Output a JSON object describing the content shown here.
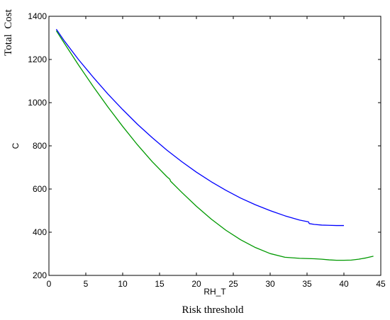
{
  "chart_data": {
    "type": "line",
    "outer_ylabel": "Total  Cost",
    "outer_xlabel": "Risk threshold",
    "xlabel": "RH_T",
    "ylabel": "C",
    "xlim": [
      0,
      45
    ],
    "ylim": [
      200,
      1400
    ],
    "xticks": [
      0,
      5,
      10,
      15,
      20,
      25,
      30,
      35,
      40,
      45
    ],
    "yticks": [
      200,
      400,
      600,
      800,
      1000,
      1200,
      1400
    ],
    "grid": false,
    "legend": "none",
    "series": [
      {
        "color": "#0000ff",
        "x": [
          1,
          2,
          4,
          6,
          8,
          10,
          12,
          14,
          16,
          18,
          20,
          22,
          24,
          26,
          28,
          30,
          32,
          34,
          35.2,
          35.3,
          36,
          37,
          38,
          39,
          40
        ],
        "y": [
          1340,
          1290,
          1200,
          1118,
          1040,
          968,
          900,
          838,
          780,
          727,
          678,
          634,
          594,
          558,
          527,
          500,
          476,
          456,
          448,
          440,
          436,
          433,
          432,
          431,
          431
        ]
      },
      {
        "color": "#009900",
        "x": [
          1,
          2,
          4,
          6,
          8,
          10,
          12,
          14,
          16,
          16.4,
          16.5,
          18,
          20,
          22,
          24,
          26,
          28,
          30,
          32,
          34,
          36,
          37,
          38,
          39,
          40,
          41,
          42,
          43,
          44
        ],
        "y": [
          1333,
          1280,
          1175,
          1075,
          980,
          890,
          805,
          727,
          657,
          645,
          636,
          585,
          520,
          461,
          409,
          365,
          329,
          301,
          284,
          279,
          277,
          275,
          272,
          270,
          270,
          271,
          275,
          281,
          289
        ]
      }
    ]
  }
}
